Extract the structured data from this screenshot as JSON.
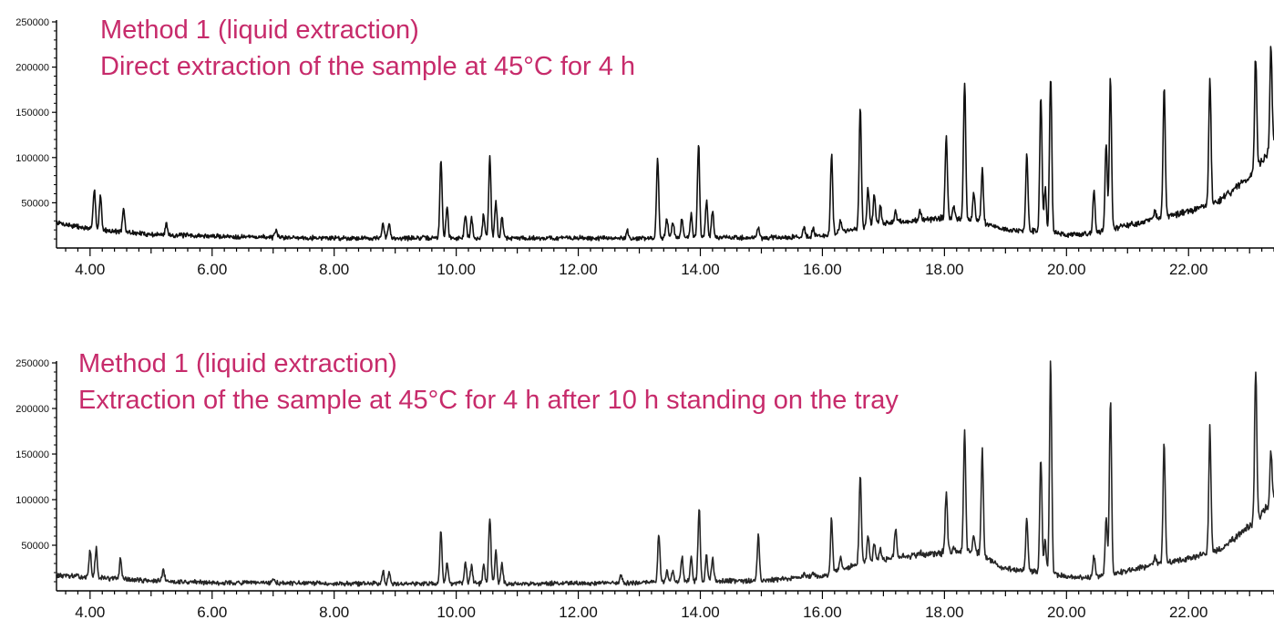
{
  "chart_data": [
    {
      "type": "line",
      "title": "Method 1 (liquid extraction)",
      "subtitle": "Direct extraction of the sample at 45°C for 4 h",
      "xlabel": "",
      "ylabel": "",
      "xlim": [
        3.45,
        23.4
      ],
      "ylim": [
        0,
        250000
      ],
      "xticks": [
        "4.00",
        "6.00",
        "8.00",
        "10.00",
        "12.00",
        "14.00",
        "16.00",
        "18.00",
        "20.00",
        "22.00"
      ],
      "yticks": [
        "50000",
        "100000",
        "150000",
        "200000",
        "250000"
      ],
      "grid": false,
      "series": [
        {
          "baseline": [
            [
              3.45,
              28000
            ],
            [
              4.0,
              21000
            ],
            [
              5.0,
              15000
            ],
            [
              6.0,
              13000
            ],
            [
              8.0,
              11000
            ],
            [
              10.0,
              11000
            ],
            [
              12.0,
              11000
            ],
            [
              13.0,
              10500
            ],
            [
              14.0,
              12000
            ],
            [
              15.0,
              11000
            ],
            [
              16.0,
              13000
            ],
            [
              16.6,
              22000
            ],
            [
              17.0,
              27000
            ],
            [
              18.0,
              33000
            ],
            [
              18.5,
              31000
            ],
            [
              19.0,
              20000
            ],
            [
              19.7,
              18000
            ],
            [
              20.0,
              14000
            ],
            [
              20.5,
              17000
            ],
            [
              21.0,
              25000
            ],
            [
              21.5,
              33000
            ],
            [
              22.0,
              40000
            ],
            [
              22.5,
              52000
            ],
            [
              23.0,
              78000
            ],
            [
              23.4,
              115000
            ]
          ],
          "peaks": [
            [
              4.07,
              68000
            ],
            [
              4.17,
              58000
            ],
            [
              4.55,
              42000
            ],
            [
              5.25,
              27000
            ],
            [
              7.05,
              18000
            ],
            [
              8.8,
              26000
            ],
            [
              8.9,
              26000
            ],
            [
              9.75,
              100000
            ],
            [
              9.85,
              45000
            ],
            [
              10.15,
              37000
            ],
            [
              10.25,
              33000
            ],
            [
              10.45,
              37000
            ],
            [
              10.55,
              103000
            ],
            [
              10.65,
              52000
            ],
            [
              10.75,
              35000
            ],
            [
              12.8,
              20000
            ],
            [
              13.3,
              98000
            ],
            [
              13.45,
              34000
            ],
            [
              13.55,
              30000
            ],
            [
              13.7,
              33000
            ],
            [
              13.85,
              37000
            ],
            [
              13.97,
              115000
            ],
            [
              14.1,
              52000
            ],
            [
              14.2,
              40000
            ],
            [
              14.95,
              24000
            ],
            [
              15.7,
              24000
            ],
            [
              15.85,
              22000
            ],
            [
              16.15,
              103000
            ],
            [
              16.3,
              30000
            ],
            [
              16.62,
              153000
            ],
            [
              16.75,
              65000
            ],
            [
              16.85,
              60000
            ],
            [
              16.95,
              45000
            ],
            [
              17.2,
              40000
            ],
            [
              17.6,
              42000
            ],
            [
              18.03,
              123000
            ],
            [
              18.15,
              45000
            ],
            [
              18.33,
              185000
            ],
            [
              18.48,
              60000
            ],
            [
              18.62,
              85000
            ],
            [
              19.35,
              105000
            ],
            [
              19.58,
              170000
            ],
            [
              19.65,
              65000
            ],
            [
              19.74,
              197000
            ],
            [
              20.45,
              63000
            ],
            [
              20.65,
              117000
            ],
            [
              20.72,
              188000
            ],
            [
              21.45,
              40000
            ],
            [
              21.6,
              180000
            ],
            [
              22.35,
              188000
            ],
            [
              23.1,
              215000
            ],
            [
              23.35,
              223000
            ]
          ]
        }
      ]
    },
    {
      "type": "line",
      "title": "Method 1 (liquid extraction)",
      "subtitle": "Extraction of the sample at 45°C for 4 h after 10 h standing on the tray",
      "xlabel": "",
      "ylabel": "",
      "xlim": [
        3.45,
        23.4
      ],
      "ylim": [
        0,
        250000
      ],
      "xticks": [
        "4.00",
        "6.00",
        "8.00",
        "10.00",
        "12.00",
        "14.00",
        "16.00",
        "18.00",
        "20.00",
        "22.00"
      ],
      "yticks": [
        "50000",
        "100000",
        "150000",
        "200000",
        "250000"
      ],
      "grid": false,
      "series": [
        {
          "baseline": [
            [
              3.45,
              17000
            ],
            [
              4.0,
              15000
            ],
            [
              5.0,
              11000
            ],
            [
              6.0,
              9000
            ],
            [
              8.0,
              8000
            ],
            [
              10.0,
              8000
            ],
            [
              12.0,
              8000
            ],
            [
              13.0,
              9000
            ],
            [
              14.0,
              11000
            ],
            [
              15.0,
              11000
            ],
            [
              16.0,
              16000
            ],
            [
              16.6,
              30000
            ],
            [
              17.0,
              35000
            ],
            [
              18.0,
              42000
            ],
            [
              18.5,
              43000
            ],
            [
              19.0,
              24000
            ],
            [
              19.7,
              20000
            ],
            [
              20.0,
              15000
            ],
            [
              20.5,
              15000
            ],
            [
              21.0,
              22000
            ],
            [
              21.5,
              30000
            ],
            [
              22.0,
              35000
            ],
            [
              22.5,
              45000
            ],
            [
              23.0,
              70000
            ],
            [
              23.4,
              100000
            ]
          ],
          "peaks": [
            [
              4.0,
              43000
            ],
            [
              4.1,
              46000
            ],
            [
              4.5,
              35000
            ],
            [
              5.2,
              23000
            ],
            [
              7.0,
              14000
            ],
            [
              8.8,
              22000
            ],
            [
              8.9,
              22000
            ],
            [
              9.75,
              66000
            ],
            [
              9.85,
              30000
            ],
            [
              10.15,
              30000
            ],
            [
              10.25,
              26000
            ],
            [
              10.45,
              28000
            ],
            [
              10.55,
              83000
            ],
            [
              10.65,
              42000
            ],
            [
              10.75,
              28000
            ],
            [
              12.7,
              16000
            ],
            [
              13.32,
              63000
            ],
            [
              13.45,
              22000
            ],
            [
              13.55,
              22000
            ],
            [
              13.7,
              37000
            ],
            [
              13.85,
              37000
            ],
            [
              13.98,
              90000
            ],
            [
              14.1,
              38000
            ],
            [
              14.2,
              36000
            ],
            [
              14.95,
              59000
            ],
            [
              15.7,
              20000
            ],
            [
              15.85,
              20000
            ],
            [
              16.15,
              77000
            ],
            [
              16.3,
              36000
            ],
            [
              16.62,
              130000
            ],
            [
              16.75,
              62000
            ],
            [
              16.85,
              52000
            ],
            [
              16.95,
              45000
            ],
            [
              17.2,
              70000
            ],
            [
              17.6,
              42000
            ],
            [
              18.03,
              108000
            ],
            [
              18.15,
              50000
            ],
            [
              18.33,
              180000
            ],
            [
              18.48,
              60000
            ],
            [
              18.62,
              151000
            ],
            [
              19.35,
              78000
            ],
            [
              19.58,
              147000
            ],
            [
              19.65,
              55000
            ],
            [
              19.74,
              251000
            ],
            [
              20.45,
              38000
            ],
            [
              20.65,
              80000
            ],
            [
              20.72,
              211000
            ],
            [
              21.45,
              38000
            ],
            [
              21.6,
              160000
            ],
            [
              22.35,
              174000
            ],
            [
              23.1,
              240000
            ],
            [
              23.35,
              152000
            ]
          ]
        }
      ]
    }
  ],
  "colors": {
    "title": "#c72b6b",
    "trace_top": "#111111",
    "trace_bottom": "#262626",
    "axis": "#000000"
  }
}
